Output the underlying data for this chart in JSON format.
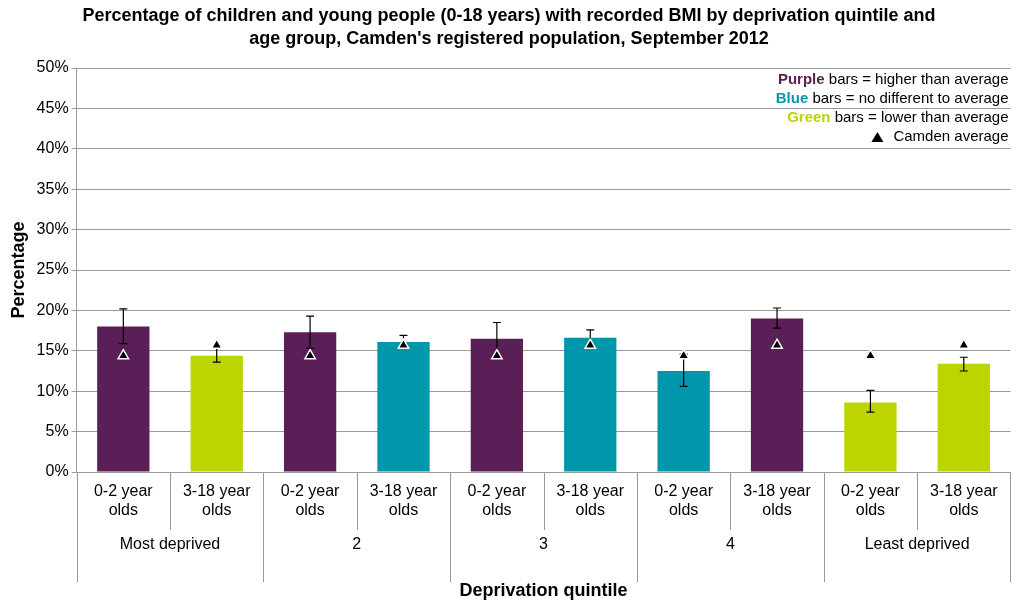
{
  "chart_data": {
    "type": "bar",
    "title": "Percentage of children and young people (0-18 years) with recorded BMI by deprivation quintile and age group, Camden's registered population, September 2012",
    "xlabel": "Deprivation quintile",
    "ylabel": "Percentage",
    "categories": [
      "0-2 year olds",
      "3-18 year olds",
      "0-2 year olds",
      "3-18 year olds",
      "0-2 year olds",
      "3-18 year olds",
      "0-2 year olds",
      "3-18 year olds",
      "0-2 year olds",
      "3-18 year olds"
    ],
    "annotations": [
      "Most deprived",
      "2",
      "3",
      "4",
      "Least deprived"
    ],
    "stacked": true,
    "series": [
      {
        "name": "Purple bars = higher than average",
        "color": "#5a1f57",
        "values": [
          18.0,
          null,
          17.3,
          null,
          16.5,
          null,
          null,
          19.0,
          null,
          null
        ],
        "errors": [
          [
            15.9,
            20.2
          ],
          null,
          [
            15.3,
            19.3
          ],
          null,
          [
            14.4,
            18.5
          ],
          null,
          null,
          [
            17.8,
            20.3
          ],
          null,
          null
        ]
      },
      {
        "name": "Blue bars = no different to average",
        "color": "#0097ad",
        "values": [
          null,
          null,
          null,
          16.1,
          null,
          16.6,
          12.5,
          null,
          null,
          null
        ],
        "errors": [
          null,
          null,
          null,
          [
            15.3,
            16.9
          ],
          null,
          [
            15.7,
            17.6
          ],
          [
            10.6,
            14.6
          ],
          null,
          null,
          null
        ]
      },
      {
        "name": "Green bars = lower than average",
        "color": "#bcd400",
        "values": [
          null,
          14.4,
          null,
          null,
          null,
          null,
          null,
          null,
          8.6,
          13.4
        ],
        "errors": [
          null,
          [
            13.6,
            15.4
          ],
          null,
          null,
          null,
          null,
          null,
          null,
          [
            7.4,
            10.1
          ],
          [
            12.5,
            14.2
          ]
        ]
      },
      {
        "name": "Camden average",
        "type": "scatter",
        "marker": "triangle",
        "color": "#000000",
        "values": [
          14.4,
          15.7,
          14.4,
          15.7,
          14.4,
          15.7,
          14.4,
          15.7,
          14.4,
          15.7
        ]
      }
    ],
    "ylim": [
      0,
      50
    ],
    "yticks": [
      {
        "value": 0,
        "label": "0%"
      },
      {
        "value": 5,
        "label": "5%"
      },
      {
        "value": 10,
        "label": "10%"
      },
      {
        "value": 15,
        "label": "15%"
      },
      {
        "value": 20,
        "label": "20%"
      },
      {
        "value": 25,
        "label": "25%"
      },
      {
        "value": 30,
        "label": "30%"
      },
      {
        "value": 35,
        "label": "35%"
      },
      {
        "value": 40,
        "label": "40%"
      },
      {
        "value": 45,
        "label": "45%"
      },
      {
        "value": 50,
        "label": "50%"
      }
    ],
    "grid": "y",
    "legend": "top right"
  }
}
